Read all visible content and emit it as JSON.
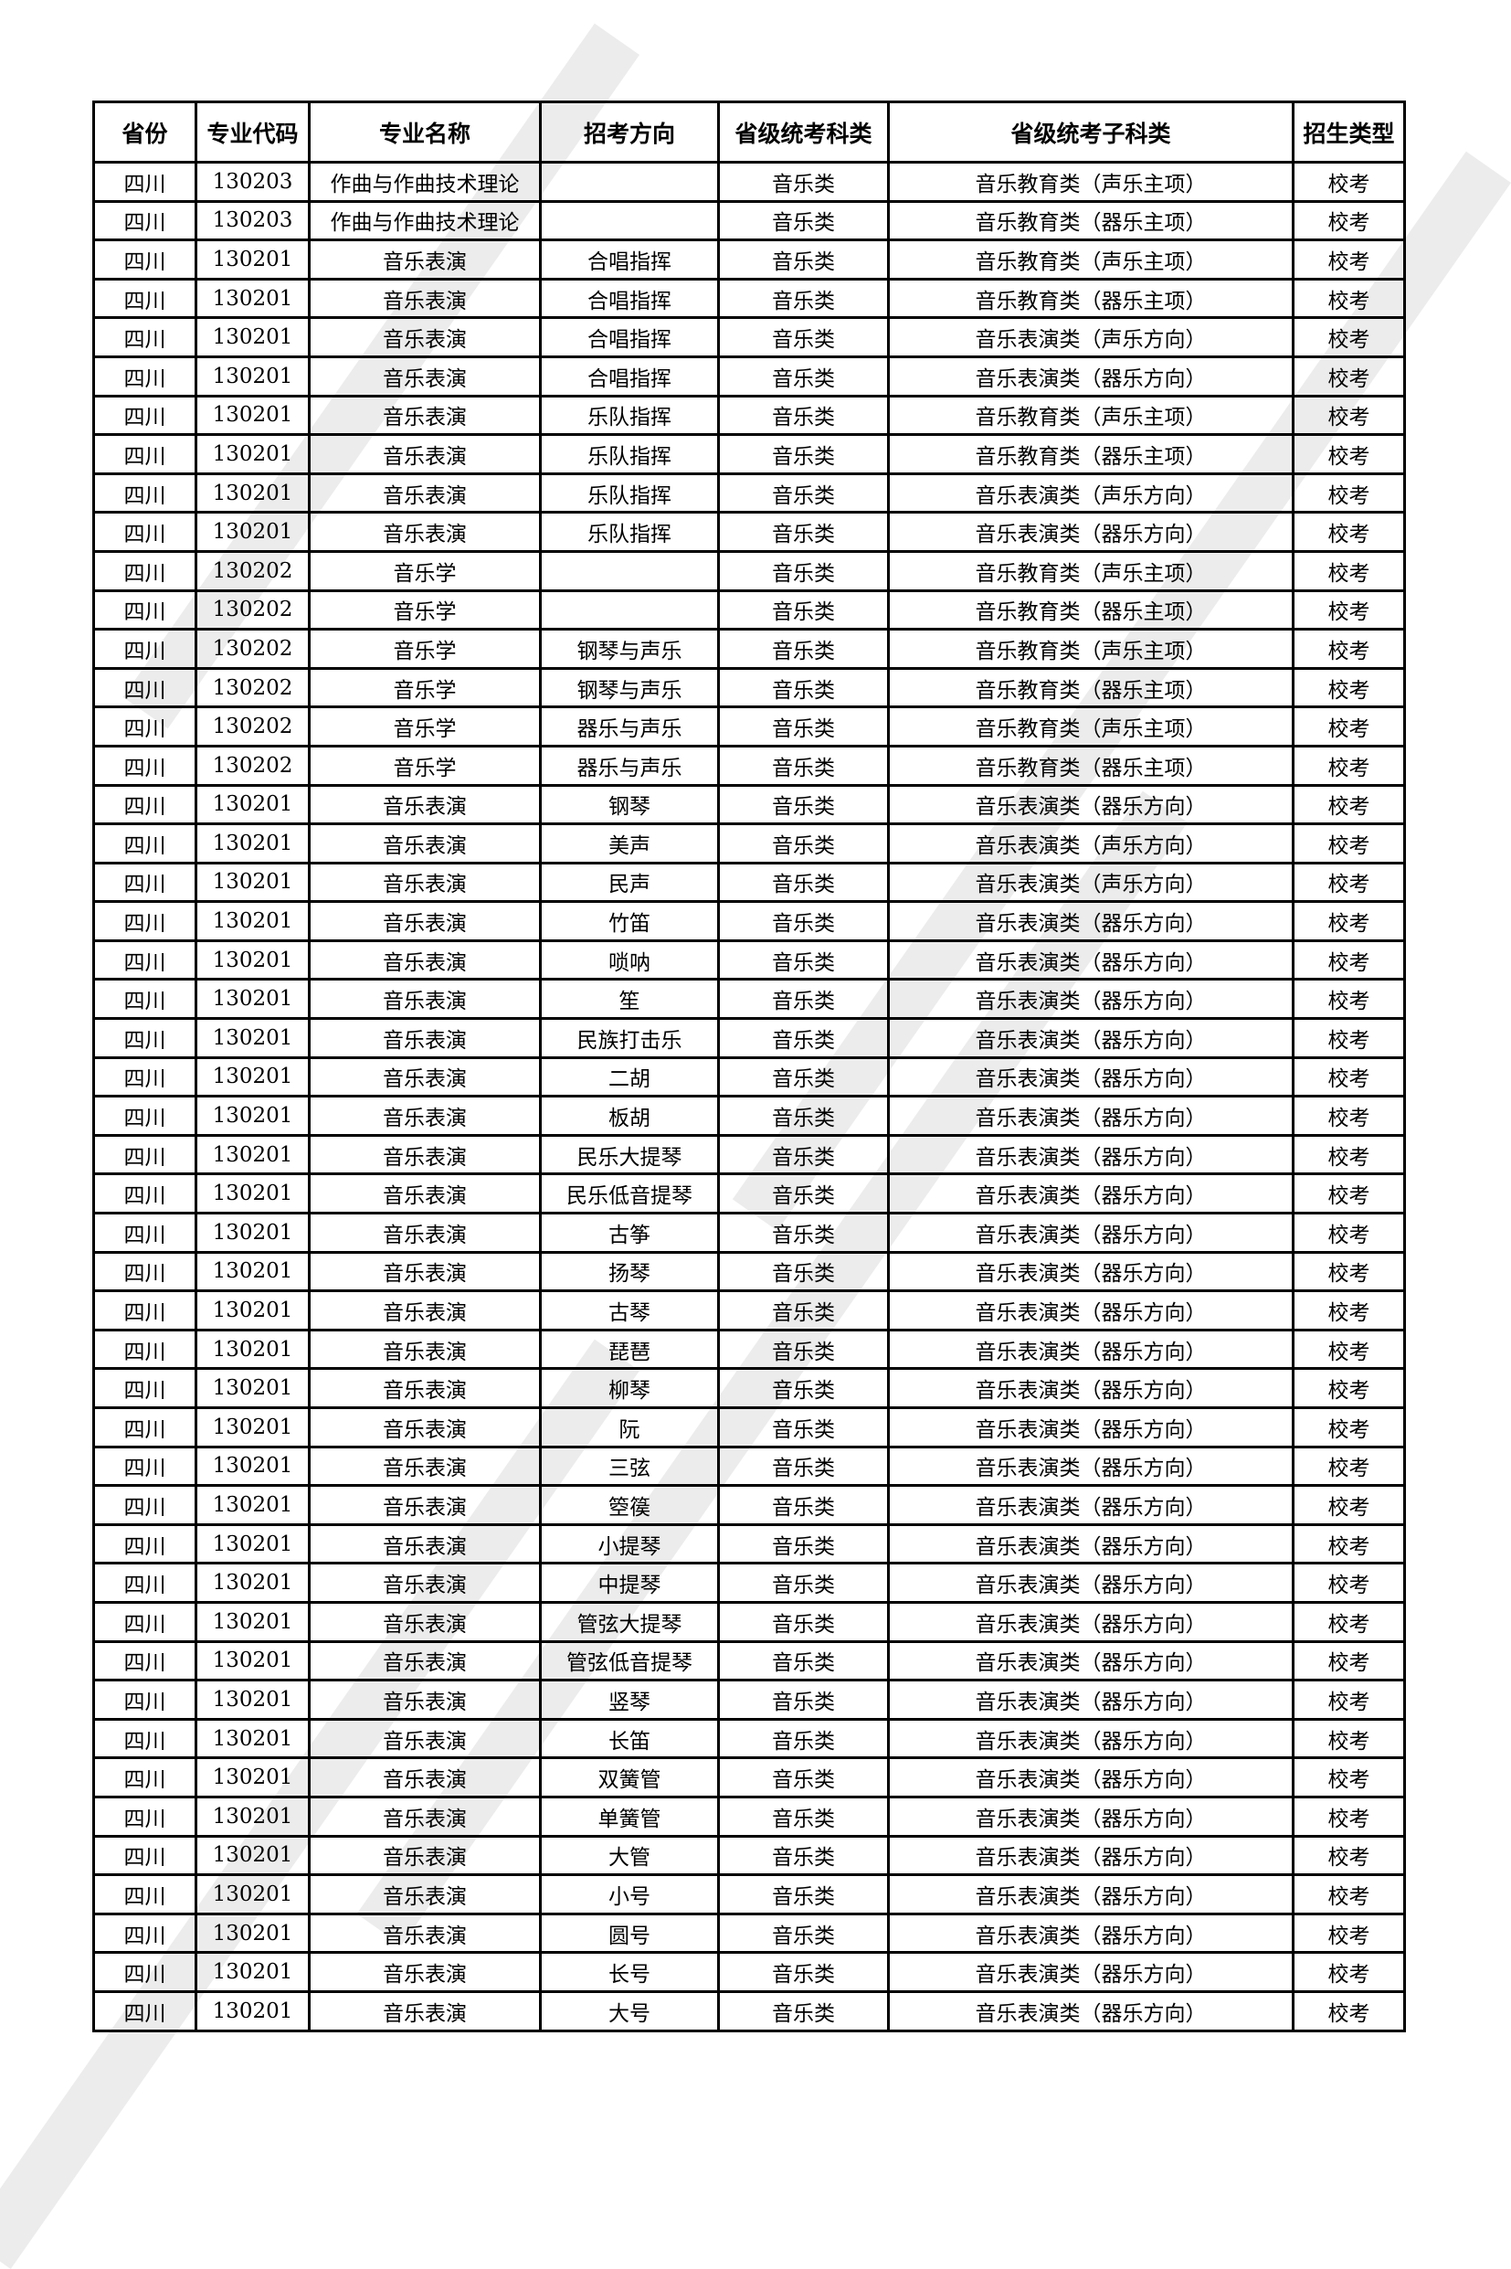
{
  "headers": [
    "省份",
    "专业代码",
    "专业名称",
    "招考方向",
    "省级统考科类",
    "省级统考子科类",
    "招生类型"
  ],
  "rows": [
    [
      "四川",
      "130203",
      "作曲与作曲技术理论",
      "",
      "音乐类",
      "音乐教育类（声乐主项）",
      "校考"
    ],
    [
      "四川",
      "130203",
      "作曲与作曲技术理论",
      "",
      "音乐类",
      "音乐教育类（器乐主项）",
      "校考"
    ],
    [
      "四川",
      "130201",
      "音乐表演",
      "合唱指挥",
      "音乐类",
      "音乐教育类（声乐主项）",
      "校考"
    ],
    [
      "四川",
      "130201",
      "音乐表演",
      "合唱指挥",
      "音乐类",
      "音乐教育类（器乐主项）",
      "校考"
    ],
    [
      "四川",
      "130201",
      "音乐表演",
      "合唱指挥",
      "音乐类",
      "音乐表演类（声乐方向）",
      "校考"
    ],
    [
      "四川",
      "130201",
      "音乐表演",
      "合唱指挥",
      "音乐类",
      "音乐表演类（器乐方向）",
      "校考"
    ],
    [
      "四川",
      "130201",
      "音乐表演",
      "乐队指挥",
      "音乐类",
      "音乐教育类（声乐主项）",
      "校考"
    ],
    [
      "四川",
      "130201",
      "音乐表演",
      "乐队指挥",
      "音乐类",
      "音乐教育类（器乐主项）",
      "校考"
    ],
    [
      "四川",
      "130201",
      "音乐表演",
      "乐队指挥",
      "音乐类",
      "音乐表演类（声乐方向）",
      "校考"
    ],
    [
      "四川",
      "130201",
      "音乐表演",
      "乐队指挥",
      "音乐类",
      "音乐表演类（器乐方向）",
      "校考"
    ],
    [
      "四川",
      "130202",
      "音乐学",
      "",
      "音乐类",
      "音乐教育类（声乐主项）",
      "校考"
    ],
    [
      "四川",
      "130202",
      "音乐学",
      "",
      "音乐类",
      "音乐教育类（器乐主项）",
      "校考"
    ],
    [
      "四川",
      "130202",
      "音乐学",
      "钢琴与声乐",
      "音乐类",
      "音乐教育类（声乐主项）",
      "校考"
    ],
    [
      "四川",
      "130202",
      "音乐学",
      "钢琴与声乐",
      "音乐类",
      "音乐教育类（器乐主项）",
      "校考"
    ],
    [
      "四川",
      "130202",
      "音乐学",
      "器乐与声乐",
      "音乐类",
      "音乐教育类（声乐主项）",
      "校考"
    ],
    [
      "四川",
      "130202",
      "音乐学",
      "器乐与声乐",
      "音乐类",
      "音乐教育类（器乐主项）",
      "校考"
    ],
    [
      "四川",
      "130201",
      "音乐表演",
      "钢琴",
      "音乐类",
      "音乐表演类（器乐方向）",
      "校考"
    ],
    [
      "四川",
      "130201",
      "音乐表演",
      "美声",
      "音乐类",
      "音乐表演类（声乐方向）",
      "校考"
    ],
    [
      "四川",
      "130201",
      "音乐表演",
      "民声",
      "音乐类",
      "音乐表演类（声乐方向）",
      "校考"
    ],
    [
      "四川",
      "130201",
      "音乐表演",
      "竹笛",
      "音乐类",
      "音乐表演类（器乐方向）",
      "校考"
    ],
    [
      "四川",
      "130201",
      "音乐表演",
      "唢呐",
      "音乐类",
      "音乐表演类（器乐方向）",
      "校考"
    ],
    [
      "四川",
      "130201",
      "音乐表演",
      "笙",
      "音乐类",
      "音乐表演类（器乐方向）",
      "校考"
    ],
    [
      "四川",
      "130201",
      "音乐表演",
      "民族打击乐",
      "音乐类",
      "音乐表演类（器乐方向）",
      "校考"
    ],
    [
      "四川",
      "130201",
      "音乐表演",
      "二胡",
      "音乐类",
      "音乐表演类（器乐方向）",
      "校考"
    ],
    [
      "四川",
      "130201",
      "音乐表演",
      "板胡",
      "音乐类",
      "音乐表演类（器乐方向）",
      "校考"
    ],
    [
      "四川",
      "130201",
      "音乐表演",
      "民乐大提琴",
      "音乐类",
      "音乐表演类（器乐方向）",
      "校考"
    ],
    [
      "四川",
      "130201",
      "音乐表演",
      "民乐低音提琴",
      "音乐类",
      "音乐表演类（器乐方向）",
      "校考"
    ],
    [
      "四川",
      "130201",
      "音乐表演",
      "古筝",
      "音乐类",
      "音乐表演类（器乐方向）",
      "校考"
    ],
    [
      "四川",
      "130201",
      "音乐表演",
      "扬琴",
      "音乐类",
      "音乐表演类（器乐方向）",
      "校考"
    ],
    [
      "四川",
      "130201",
      "音乐表演",
      "古琴",
      "音乐类",
      "音乐表演类（器乐方向）",
      "校考"
    ],
    [
      "四川",
      "130201",
      "音乐表演",
      "琵琶",
      "音乐类",
      "音乐表演类（器乐方向）",
      "校考"
    ],
    [
      "四川",
      "130201",
      "音乐表演",
      "柳琴",
      "音乐类",
      "音乐表演类（器乐方向）",
      "校考"
    ],
    [
      "四川",
      "130201",
      "音乐表演",
      "阮",
      "音乐类",
      "音乐表演类（器乐方向）",
      "校考"
    ],
    [
      "四川",
      "130201",
      "音乐表演",
      "三弦",
      "音乐类",
      "音乐表演类（器乐方向）",
      "校考"
    ],
    [
      "四川",
      "130201",
      "音乐表演",
      "箜篌",
      "音乐类",
      "音乐表演类（器乐方向）",
      "校考"
    ],
    [
      "四川",
      "130201",
      "音乐表演",
      "小提琴",
      "音乐类",
      "音乐表演类（器乐方向）",
      "校考"
    ],
    [
      "四川",
      "130201",
      "音乐表演",
      "中提琴",
      "音乐类",
      "音乐表演类（器乐方向）",
      "校考"
    ],
    [
      "四川",
      "130201",
      "音乐表演",
      "管弦大提琴",
      "音乐类",
      "音乐表演类（器乐方向）",
      "校考"
    ],
    [
      "四川",
      "130201",
      "音乐表演",
      "管弦低音提琴",
      "音乐类",
      "音乐表演类（器乐方向）",
      "校考"
    ],
    [
      "四川",
      "130201",
      "音乐表演",
      "竖琴",
      "音乐类",
      "音乐表演类（器乐方向）",
      "校考"
    ],
    [
      "四川",
      "130201",
      "音乐表演",
      "长笛",
      "音乐类",
      "音乐表演类（器乐方向）",
      "校考"
    ],
    [
      "四川",
      "130201",
      "音乐表演",
      "双簧管",
      "音乐类",
      "音乐表演类（器乐方向）",
      "校考"
    ],
    [
      "四川",
      "130201",
      "音乐表演",
      "单簧管",
      "音乐类",
      "音乐表演类（器乐方向）",
      "校考"
    ],
    [
      "四川",
      "130201",
      "音乐表演",
      "大管",
      "音乐类",
      "音乐表演类（器乐方向）",
      "校考"
    ],
    [
      "四川",
      "130201",
      "音乐表演",
      "小号",
      "音乐类",
      "音乐表演类（器乐方向）",
      "校考"
    ],
    [
      "四川",
      "130201",
      "音乐表演",
      "圆号",
      "音乐类",
      "音乐表演类（器乐方向）",
      "校考"
    ],
    [
      "四川",
      "130201",
      "音乐表演",
      "长号",
      "音乐类",
      "音乐表演类（器乐方向）",
      "校考"
    ],
    [
      "四川",
      "130201",
      "音乐表演",
      "大号",
      "音乐类",
      "音乐表演类（器乐方向）",
      "校考"
    ]
  ]
}
